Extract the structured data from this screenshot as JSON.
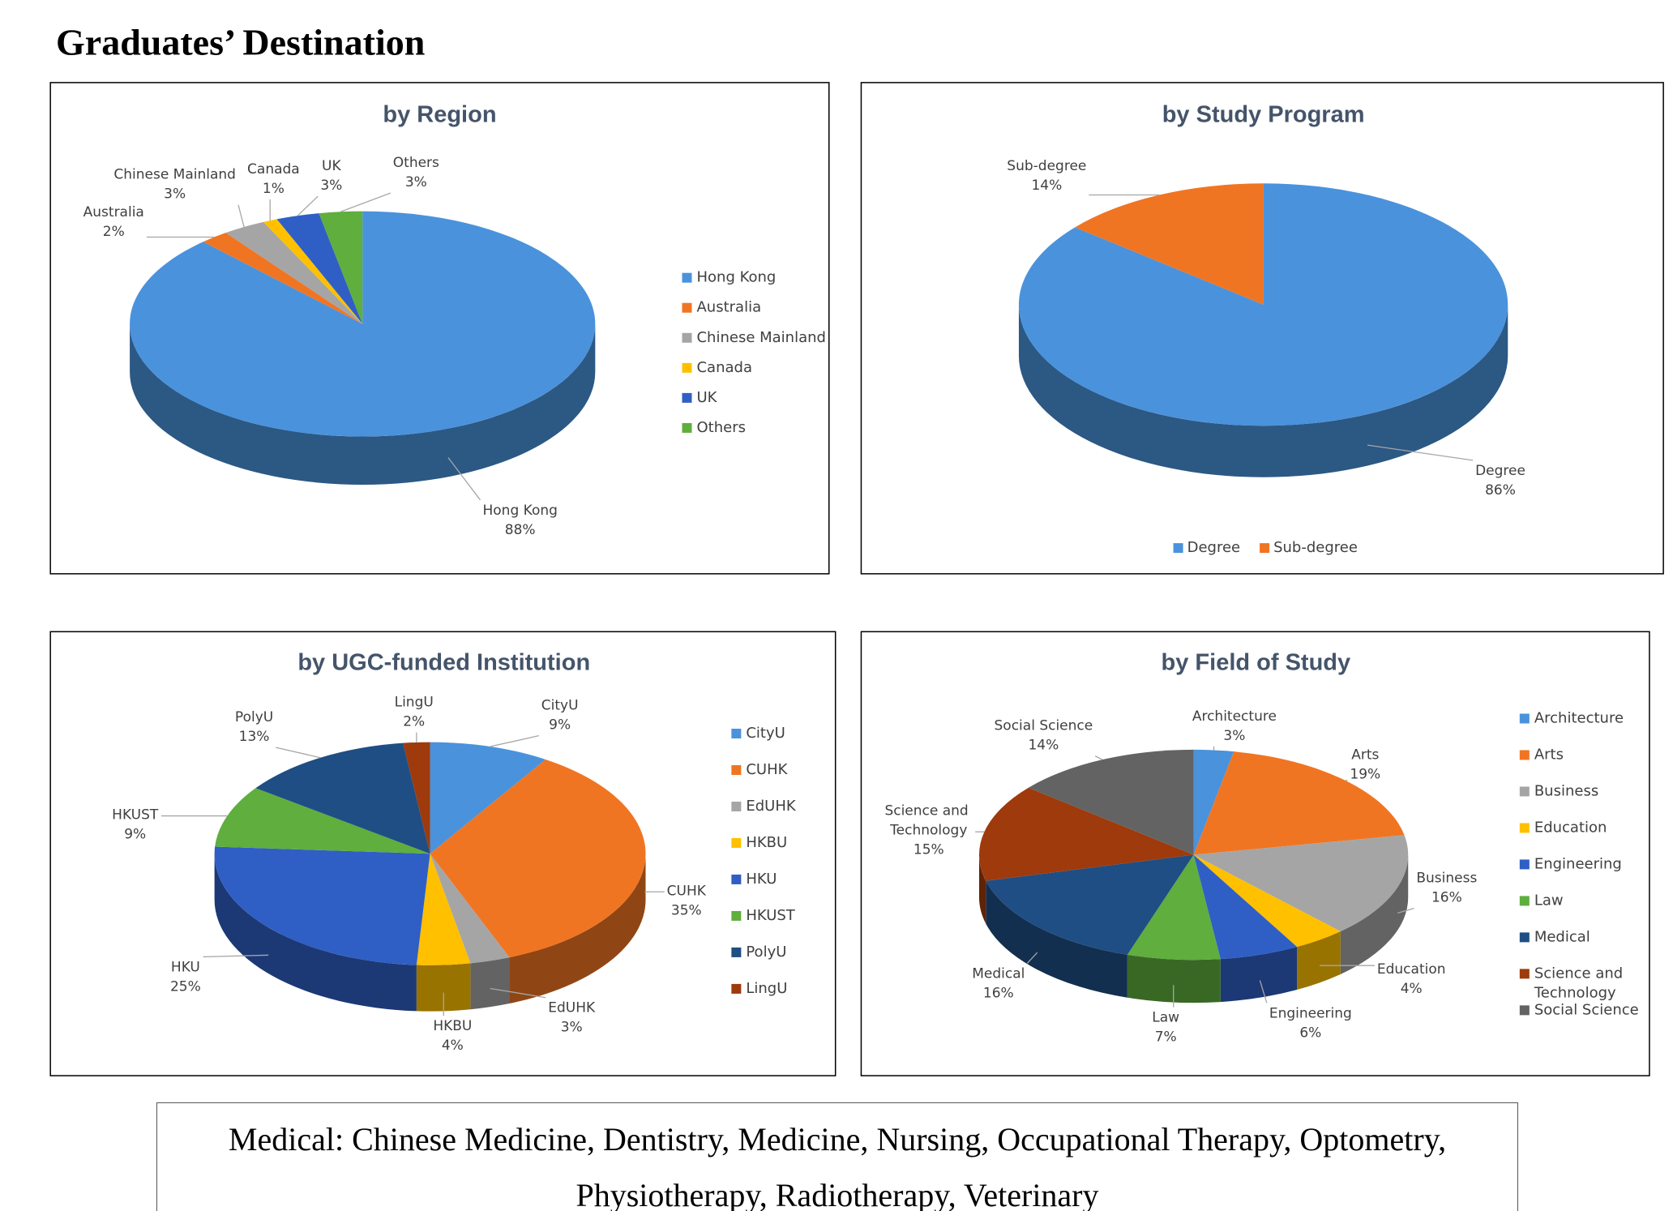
{
  "title": "Graduates’ Destination",
  "note": "Medical: Chinese Medicine, Dentistry, Medicine, Nursing, Occupational Therapy, Optometry, Physiotherapy, Radiotherapy, Veterinary",
  "chart_data": [
    {
      "type": "pie",
      "title": "by Region",
      "legend": "right",
      "categories": [
        "Hong Kong",
        "Australia",
        "Chinese Mainland",
        "Canada",
        "UK",
        "Others"
      ],
      "values": [
        88,
        2,
        3,
        1,
        3,
        3
      ],
      "value_labels": [
        "88%",
        "2%",
        "3%",
        "1%",
        "3%",
        "3%"
      ],
      "colors": [
        "#4a92dc",
        "#f07522",
        "#a5a5a5",
        "#ffc000",
        "#2f5fc4",
        "#5fae3e"
      ]
    },
    {
      "type": "pie",
      "title": "by Study Program",
      "legend": "bottom",
      "categories": [
        "Degree",
        "Sub-degree"
      ],
      "values": [
        86,
        14
      ],
      "value_labels": [
        "86%",
        "14%"
      ],
      "colors": [
        "#4a92dc",
        "#f07522"
      ]
    },
    {
      "type": "pie",
      "title": "by UGC-funded Institution",
      "legend": "right",
      "categories": [
        "CityU",
        "CUHK",
        "EdUHK",
        "HKBU",
        "HKU",
        "HKUST",
        "PolyU",
        "LingU"
      ],
      "values": [
        9,
        35,
        3,
        4,
        25,
        9,
        13,
        2
      ],
      "value_labels": [
        "9%",
        "35%",
        "3%",
        "4%",
        "25%",
        "9%",
        "13%",
        "2%"
      ],
      "colors": [
        "#4a92dc",
        "#f07522",
        "#a5a5a5",
        "#ffc000",
        "#2f5fc4",
        "#5fae3e",
        "#1f4e84",
        "#9e3a0c"
      ]
    },
    {
      "type": "pie",
      "title": "by Field of Study",
      "legend": "right",
      "categories": [
        "Architecture",
        "Arts",
        "Business",
        "Education",
        "Engineering",
        "Law",
        "Medical",
        "Science and Technology",
        "Social Science"
      ],
      "values": [
        3,
        19,
        16,
        4,
        6,
        7,
        16,
        15,
        14
      ],
      "value_labels": [
        "3%",
        "19%",
        "16%",
        "4%",
        "6%",
        "7%",
        "16%",
        "15%",
        "14%"
      ],
      "colors": [
        "#4a92dc",
        "#f07522",
        "#a5a5a5",
        "#ffc000",
        "#2f5fc4",
        "#5fae3e",
        "#1f4e84",
        "#9e3a0c",
        "#636363"
      ]
    }
  ]
}
